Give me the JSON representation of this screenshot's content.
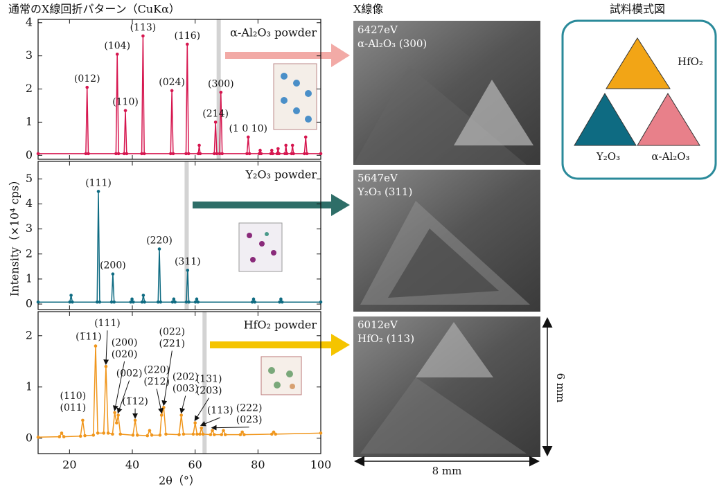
{
  "title": "通常のX線回折パターン（CuKα）",
  "chart_data": [
    {
      "type": "line",
      "xlim": [
        10,
        100
      ],
      "xticks": [
        20,
        40,
        60,
        80,
        100
      ],
      "ylim": [
        -0.12,
        4.1
      ],
      "yticks": [
        0,
        1,
        2,
        3,
        4
      ],
      "highlight_x": 67.5,
      "x": [
        10,
        25.2,
        25.6,
        26.0,
        34.8,
        35.2,
        35.6,
        37.4,
        37.8,
        38.2,
        43.0,
        43.4,
        43.8,
        52.2,
        52.6,
        53.0,
        57.1,
        57.5,
        57.9,
        61.0,
        61.3,
        61.6,
        66.1,
        66.5,
        66.9,
        67.8,
        68.2,
        68.6,
        76.5,
        76.9,
        77.3,
        80.4,
        80.7,
        81.0,
        84.1,
        84.4,
        84.7,
        86.1,
        86.4,
        86.7,
        88.6,
        88.9,
        89.2,
        90.7,
        91.0,
        91.3,
        94.8,
        95.2,
        95.6,
        100
      ],
      "series": [
        {
          "name": "α-Al₂O₃ powder",
          "color": "#d6164f",
          "values": [
            0.05,
            0.05,
            2.05,
            0.05,
            0.05,
            3.05,
            0.05,
            0.05,
            1.35,
            0.05,
            0.05,
            3.6,
            0.05,
            0.05,
            1.95,
            0.05,
            0.05,
            3.35,
            0.05,
            0.05,
            0.3,
            0.05,
            0.05,
            1.0,
            0.05,
            0.05,
            1.9,
            0.05,
            0.05,
            0.55,
            0.05,
            0.05,
            0.15,
            0.05,
            0.05,
            0.15,
            0.05,
            0.05,
            0.2,
            0.05,
            0.05,
            0.3,
            0.05,
            0.05,
            0.3,
            0.05,
            0.05,
            0.55,
            0.05,
            0.05
          ]
        }
      ],
      "annotations": [
        {
          "text": [
            "(012)"
          ],
          "x": 25.6,
          "y": 2.05
        },
        {
          "text": [
            "(104)"
          ],
          "x": 35.2,
          "y": 3.05
        },
        {
          "text": [
            "(110)"
          ],
          "x": 37.8,
          "y": 1.35
        },
        {
          "text": [
            "(113)"
          ],
          "x": 43.4,
          "y": 3.6
        },
        {
          "text": [
            "(024)"
          ],
          "x": 52.6,
          "y": 1.95
        },
        {
          "text": [
            "(116)"
          ],
          "x": 57.5,
          "y": 3.35
        },
        {
          "text": [
            "(214)"
          ],
          "x": 66.5,
          "y": 1.0
        },
        {
          "text": [
            "(300)"
          ],
          "x": 68.2,
          "y": 1.9
        },
        {
          "text": [
            "(1 0 10)"
          ],
          "x": 76.9,
          "y": 0.55
        }
      ]
    },
    {
      "type": "line",
      "xlim": [
        10,
        100
      ],
      "xticks": [
        20,
        40,
        60,
        80,
        100
      ],
      "ylim": [
        -0.22,
        5.7
      ],
      "yticks": [
        0,
        1,
        2,
        3,
        4,
        5
      ],
      "highlight_x": 57.3,
      "x": [
        10,
        20.1,
        20.5,
        20.9,
        28.8,
        29.2,
        29.6,
        33.4,
        33.8,
        34.2,
        39.5,
        39.9,
        40.3,
        43.1,
        43.5,
        43.9,
        48.2,
        48.6,
        49.0,
        52.8,
        53.2,
        53.6,
        57.2,
        57.6,
        58.0,
        60.1,
        60.5,
        60.9,
        78.2,
        78.6,
        79.0,
        86.9,
        87.3,
        87.7,
        100
      ],
      "series": [
        {
          "name": "Y₂O₃ powder",
          "color": "#0e6b82",
          "values": [
            0.08,
            0.08,
            0.35,
            0.08,
            0.08,
            4.5,
            0.08,
            0.08,
            1.2,
            0.08,
            0.08,
            0.2,
            0.08,
            0.08,
            0.35,
            0.08,
            0.08,
            2.2,
            0.08,
            0.08,
            0.2,
            0.08,
            0.08,
            1.35,
            0.08,
            0.08,
            0.2,
            0.08,
            0.08,
            0.2,
            0.08,
            0.08,
            0.2,
            0.08,
            0.08
          ]
        }
      ],
      "annotations": [
        {
          "text": [
            "(111)"
          ],
          "x": 29.2,
          "y": 4.5
        },
        {
          "text": [
            "(200)"
          ],
          "x": 33.8,
          "y": 1.2
        },
        {
          "text": [
            "(220)"
          ],
          "x": 48.6,
          "y": 2.2
        },
        {
          "text": [
            "(311)"
          ],
          "x": 57.6,
          "y": 1.35
        }
      ]
    },
    {
      "type": "line",
      "xlim": [
        10,
        100
      ],
      "xticks": [
        20,
        40,
        60,
        80,
        100
      ],
      "ylim": [
        -0.3,
        2.47
      ],
      "yticks": [
        0,
        1,
        2
      ],
      "highlight_x": 63,
      "xlabel": "2θ（°）",
      "x": [
        10,
        16.8,
        17.5,
        18.2,
        23.5,
        24.2,
        24.9,
        27.6,
        28.3,
        29.0,
        30.9,
        31.6,
        32.3,
        33.7,
        34.4,
        35.0,
        35.5,
        36.2,
        40.2,
        40.9,
        41.6,
        44.8,
        45.5,
        46.2,
        48.8,
        49.3,
        50.0,
        50.7,
        54.9,
        55.6,
        56.3,
        59.4,
        60.0,
        60.6,
        61.5,
        62.0,
        62.5,
        64.9,
        65.5,
        66.1,
        68.4,
        69.0,
        69.6,
        74.4,
        75.0,
        75.6,
        84.4,
        85.0,
        85.6,
        100
      ],
      "series": [
        {
          "name": "HfO₂ powder",
          "color": "#f0961c",
          "values": [
            0.02,
            0.03,
            0.1,
            0.03,
            0.04,
            0.35,
            0.05,
            0.06,
            1.8,
            0.1,
            0.1,
            1.4,
            0.1,
            0.08,
            0.5,
            0.3,
            0.45,
            0.08,
            0.06,
            0.35,
            0.06,
            0.05,
            0.15,
            0.06,
            0.06,
            0.45,
            0.6,
            0.08,
            0.07,
            0.45,
            0.08,
            0.08,
            0.3,
            0.08,
            0.08,
            0.2,
            0.08,
            0.07,
            0.15,
            0.07,
            0.07,
            0.15,
            0.07,
            0.07,
            0.12,
            0.07,
            0.08,
            0.12,
            0.08,
            0.1
          ]
        }
      ],
      "annotations": [
        {
          "text": [
            "(110)",
            "(011)"
          ],
          "x": 24.2,
          "y": 0.35
        },
        {
          "text": [
            "(1̅11)"
          ],
          "x": 28.3,
          "y": 1.8
        },
        {
          "text": [
            "(111)"
          ],
          "x": 31.6,
          "y": 1.4
        },
        {
          "text": [
            "(200)",
            "(020)"
          ],
          "x": 34.4,
          "y": 0.5
        },
        {
          "text": [
            "(002)"
          ],
          "x": 35.5,
          "y": 0.45
        },
        {
          "text": [
            "(1̅12)"
          ],
          "x": 40.9,
          "y": 0.35
        },
        {
          "text": [
            "(220)",
            "(2̅12)"
          ],
          "x": 49.3,
          "y": 0.45
        },
        {
          "text": [
            "(022)",
            "(2̅21)"
          ],
          "x": 50.0,
          "y": 0.6
        },
        {
          "text": [
            "(202)",
            "(003)"
          ],
          "x": 55.6,
          "y": 0.45
        },
        {
          "text": [
            "(131)",
            "(2̅03)"
          ],
          "x": 60.0,
          "y": 0.3
        },
        {
          "text": [
            "(113)"
          ],
          "x": 62.0,
          "y": 0.2
        },
        {
          "text": [
            "(222)",
            "(023)"
          ],
          "x": 65.5,
          "y": 0.15
        }
      ]
    }
  ],
  "ylabel": "Intensity（×10⁴ cps）",
  "xray_images": {
    "title": "X線像",
    "panels": [
      {
        "energy": "6427eV",
        "reflection": "α-Al₂O₃ (300)"
      },
      {
        "energy": "5647eV",
        "reflection": "Y₂O₃ (311)"
      },
      {
        "energy": "6012eV",
        "reflection": "HfO₂ (113)"
      }
    ],
    "width_label": "8 mm",
    "height_label": "6 mm"
  },
  "schematic": {
    "title": "試料模式図",
    "labels": [
      "HfO₂",
      "Y₂O₃",
      "α-Al₂O₃"
    ]
  }
}
